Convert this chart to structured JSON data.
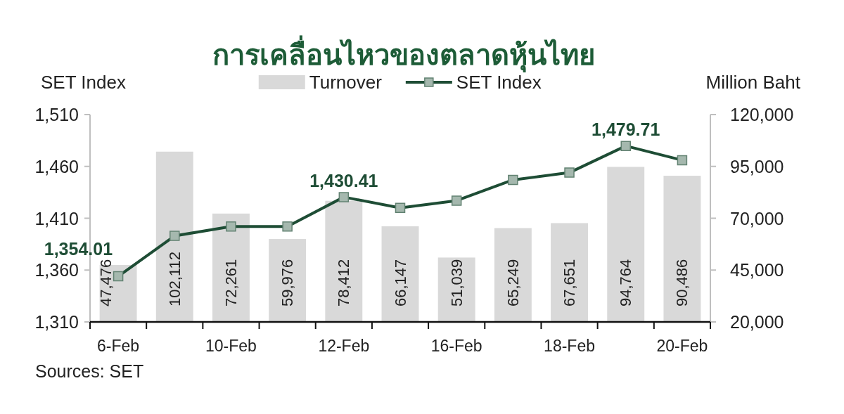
{
  "chart_data": {
    "type": "bar",
    "title": "การเคลื่อนไหวของตลาดหุ้นไทย",
    "ylabel": "SET Index",
    "y2label": "Million Baht",
    "categories": [
      "6-Feb",
      null,
      "10-Feb",
      null,
      "12-Feb",
      null,
      "16-Feb",
      null,
      "18-Feb",
      null,
      "20-Feb"
    ],
    "series": [
      {
        "name": "Turnover",
        "axis": "y2",
        "color": "#d9d9d9",
        "values": [
          47476,
          102112,
          72261,
          59976,
          78412,
          66147,
          51039,
          65249,
          67651,
          94764,
          90486
        ],
        "value_labels": [
          "47,476",
          "102,112",
          "72,261",
          "59,976",
          "78,412",
          "66,147",
          "51,039",
          "65,249",
          "67,651",
          "94,764",
          "90,486"
        ]
      },
      {
        "name": "SET Index",
        "type": "line",
        "axis": "y",
        "color": "#1e4d35",
        "values": [
          1354.01,
          1393,
          1402,
          1402,
          1430.41,
          1420,
          1427,
          1447,
          1454,
          1479.71,
          1466
        ],
        "value_labels": [
          "1,354.01",
          null,
          null,
          null,
          "1,430.41",
          null,
          null,
          null,
          null,
          "1,479.71",
          null
        ]
      }
    ],
    "ylim": [
      1310,
      1510
    ],
    "yticks": [
      {
        "value": 1310,
        "label": "1,310"
      },
      {
        "value": 1360,
        "label": "1,360"
      },
      {
        "value": 1410,
        "label": "1,410"
      },
      {
        "value": 1460,
        "label": "1,460"
      },
      {
        "value": 1510,
        "label": "1,510"
      }
    ],
    "y2lim": [
      20000,
      120000
    ],
    "y2ticks": [
      {
        "value": 20000,
        "label": "20,000"
      },
      {
        "value": 45000,
        "label": "45,000"
      },
      {
        "value": 70000,
        "label": "70,000"
      },
      {
        "value": 95000,
        "label": "95,000"
      },
      {
        "value": 120000,
        "label": "120,000"
      }
    ],
    "marker": "square",
    "legend": "top",
    "annotations": [
      "Sources: SET"
    ]
  }
}
